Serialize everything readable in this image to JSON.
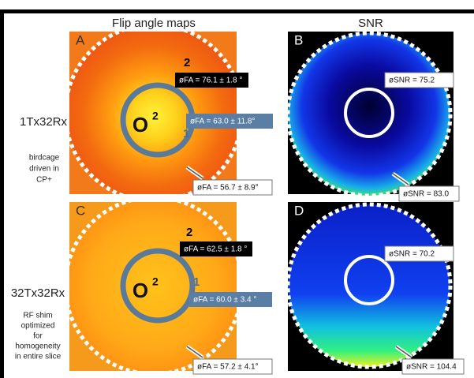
{
  "headers": [
    "Flip angle maps",
    "SNR"
  ],
  "rows": [
    {
      "label": "1Tx32Rx",
      "note": [
        "birdcage",
        "driven in",
        "CP+"
      ]
    },
    {
      "label": "32Tx32Rx",
      "note": [
        "RF shim",
        "optimized",
        "for",
        "homogeneity",
        "in entire slice"
      ]
    }
  ],
  "panels": [
    {
      "letter": "A",
      "regions": [
        "2",
        "1"
      ],
      "marker": [
        "O",
        "2"
      ],
      "boxes": [
        "øFA = 76.1 ± 1.8 °",
        "øFA = 63.0 ± 11.8°",
        "øFA = 56.7 ± 8.9°"
      ]
    },
    {
      "letter": "B",
      "boxes": [
        "øSNR = 75.2",
        "øSNR = 83.0"
      ]
    },
    {
      "letter": "C",
      "regions": [
        "2",
        "1"
      ],
      "marker": [
        "O",
        "2"
      ],
      "boxes": [
        "øFA = 62.5 ± 1.8 °",
        "øFA = 60.0 ± 3.4 °",
        "øFA = 57.2 ± 4.1°"
      ]
    },
    {
      "letter": "D",
      "boxes": [
        "øSNR = 70.2",
        "øSNR = 104.4"
      ]
    }
  ]
}
